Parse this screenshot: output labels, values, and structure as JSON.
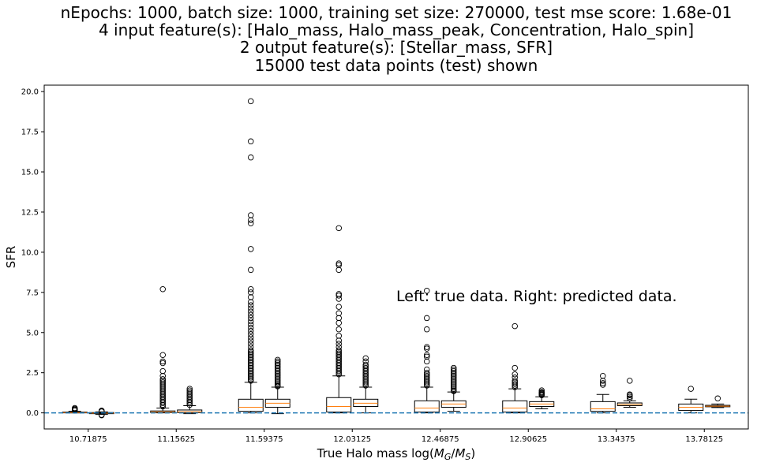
{
  "chart_data": {
    "type": "box",
    "title_lines": [
      "nEpochs: 1000, batch size: 1000, training set size: 270000, test mse score: 1.68e-01",
      "4 input feature(s): [Halo_mass, Halo_mass_peak, Concentration, Halo_spin]",
      "2 output feature(s): [Stellar_mass, SFR]",
      "15000 test data points (test) shown"
    ],
    "xlabel": "True Halo mass log(",
    "xlabel_math": {
      "M": "M",
      "G": "G",
      "slash": "/",
      "S": "S",
      "close": ")"
    },
    "ylabel": "SFR",
    "annotation": "Left: true data. Right: predicted data.",
    "ylim": [
      -1.0,
      20.4
    ],
    "y_ticks": [
      0.0,
      2.5,
      5.0,
      7.5,
      10.0,
      12.5,
      15.0,
      17.5,
      20.0
    ],
    "y_tick_labels": [
      "0.0",
      "2.5",
      "5.0",
      "7.5",
      "10.0",
      "12.5",
      "15.0",
      "17.5",
      "20.0"
    ],
    "categories": [
      "10.71875",
      "11.15625",
      "11.59375",
      "12.03125",
      "12.46875",
      "12.90625",
      "13.34375",
      "13.78125"
    ],
    "reference_line": {
      "y": 0.0,
      "style": "dashed",
      "color": "#1f77b4"
    },
    "colors": {
      "box": "#000000",
      "median": "#ff7f0e",
      "flier": "#000000"
    },
    "series": [
      {
        "name": "true",
        "boxes": [
          {
            "q1": 0.0,
            "median": 0.02,
            "q3": 0.05,
            "whislo": 0.0,
            "whishi": 0.1,
            "fliers": [
              0.15,
              0.2,
              0.25,
              0.3
            ]
          },
          {
            "q1": 0.02,
            "median": 0.06,
            "q3": 0.12,
            "whislo": 0.0,
            "whishi": 0.3,
            "fliers": [
              0.4,
              0.5,
              0.6,
              0.7,
              0.8,
              0.9,
              1.0,
              1.1,
              1.2,
              1.3,
              1.4,
              1.5,
              1.6,
              1.7,
              1.8,
              1.9,
              2.0,
              2.1,
              2.3,
              2.6,
              3.1,
              3.2,
              3.6,
              7.7
            ]
          },
          {
            "q1": 0.1,
            "median": 0.35,
            "q3": 0.85,
            "whislo": 0.0,
            "whishi": 1.9,
            "fliers": [
              2.0,
              2.1,
              2.2,
              2.3,
              2.4,
              2.5,
              2.6,
              2.7,
              2.8,
              2.9,
              3.0,
              3.1,
              3.2,
              3.3,
              3.4,
              3.5,
              3.6,
              3.7,
              3.8,
              3.9,
              4.1,
              4.3,
              4.5,
              4.7,
              4.9,
              5.1,
              5.3,
              5.5,
              5.7,
              5.9,
              6.1,
              6.3,
              6.5,
              6.7,
              6.9,
              7.2,
              7.5,
              7.7,
              8.9,
              10.2,
              11.8,
              12.0,
              12.3,
              15.9,
              16.9,
              19.4
            ]
          },
          {
            "q1": 0.05,
            "median": 0.4,
            "q3": 0.95,
            "whislo": 0.0,
            "whishi": 2.3,
            "fliers": [
              2.4,
              2.5,
              2.6,
              2.7,
              2.8,
              2.9,
              3.0,
              3.1,
              3.2,
              3.3,
              3.4,
              3.5,
              3.6,
              3.7,
              3.8,
              3.9,
              4.1,
              4.3,
              4.5,
              4.8,
              5.2,
              5.6,
              5.9,
              6.2,
              6.6,
              7.1,
              7.3,
              7.4,
              8.9,
              9.2,
              9.3,
              11.5
            ]
          },
          {
            "q1": 0.05,
            "median": 0.3,
            "q3": 0.75,
            "whislo": 0.0,
            "whishi": 1.6,
            "fliers": [
              1.7,
              1.8,
              1.9,
              2.0,
              2.1,
              2.2,
              2.3,
              2.4,
              2.5,
              2.7,
              3.2,
              3.5,
              3.6,
              4.0,
              4.1,
              5.2,
              5.9,
              7.6
            ]
          },
          {
            "q1": 0.05,
            "median": 0.3,
            "q3": 0.75,
            "whislo": 0.0,
            "whishi": 1.5,
            "fliers": [
              1.6,
              1.7,
              1.8,
              1.9,
              2.0,
              2.2,
              2.4,
              2.8,
              5.4
            ]
          },
          {
            "q1": 0.1,
            "median": 0.25,
            "q3": 0.7,
            "whislo": 0.0,
            "whishi": 1.15,
            "fliers": [
              1.75,
              1.85,
              2.0,
              2.3
            ]
          },
          {
            "q1": 0.15,
            "median": 0.35,
            "q3": 0.55,
            "whislo": 0.0,
            "whishi": 0.85,
            "fliers": [
              1.5
            ]
          }
        ]
      },
      {
        "name": "predicted",
        "boxes": [
          {
            "q1": -0.05,
            "median": -0.02,
            "q3": 0.02,
            "whislo": -0.1,
            "whishi": 0.06,
            "fliers": [
              0.08,
              0.1,
              0.12,
              0.14,
              -0.12,
              -0.15
            ]
          },
          {
            "q1": 0.02,
            "median": 0.07,
            "q3": 0.18,
            "whislo": -0.05,
            "whishi": 0.45,
            "fliers": [
              0.5,
              0.6,
              0.7,
              0.8,
              0.9,
              1.0,
              1.1,
              1.2,
              1.3,
              1.4,
              1.5
            ]
          },
          {
            "q1": 0.35,
            "median": 0.6,
            "q3": 0.85,
            "whislo": -0.05,
            "whishi": 1.6,
            "fliers": [
              1.65,
              1.7,
              1.8,
              1.9,
              2.0,
              2.1,
              2.2,
              2.3,
              2.4,
              2.5,
              2.6,
              2.7,
              2.8,
              2.9,
              3.0,
              3.1,
              3.2,
              3.3
            ]
          },
          {
            "q1": 0.4,
            "median": 0.6,
            "q3": 0.85,
            "whislo": 0.0,
            "whishi": 1.6,
            "fliers": [
              1.7,
              1.8,
              1.9,
              2.0,
              2.1,
              2.2,
              2.3,
              2.4,
              2.5,
              2.6,
              2.7,
              2.8,
              2.9,
              3.0,
              3.2,
              3.4
            ]
          },
          {
            "q1": 0.35,
            "median": 0.55,
            "q3": 0.75,
            "whislo": 0.1,
            "whishi": 1.3,
            "fliers": [
              1.35,
              1.4,
              1.5,
              1.6,
              1.7,
              1.8,
              1.9,
              2.0,
              2.1,
              2.2,
              2.3,
              2.4,
              2.5,
              2.6,
              2.7,
              2.8
            ]
          },
          {
            "q1": 0.4,
            "median": 0.55,
            "q3": 0.7,
            "whislo": 0.25,
            "whishi": 1.0,
            "fliers": [
              1.1,
              1.15,
              1.2,
              1.25,
              1.3,
              1.4
            ]
          },
          {
            "q1": 0.45,
            "median": 0.52,
            "q3": 0.62,
            "whislo": 0.35,
            "whishi": 0.75,
            "fliers": [
              0.9,
              1.0,
              1.1,
              1.15,
              2.0
            ]
          },
          {
            "q1": 0.38,
            "median": 0.42,
            "q3": 0.47,
            "whislo": 0.33,
            "whishi": 0.55,
            "fliers": [
              0.9
            ]
          }
        ]
      }
    ]
  }
}
